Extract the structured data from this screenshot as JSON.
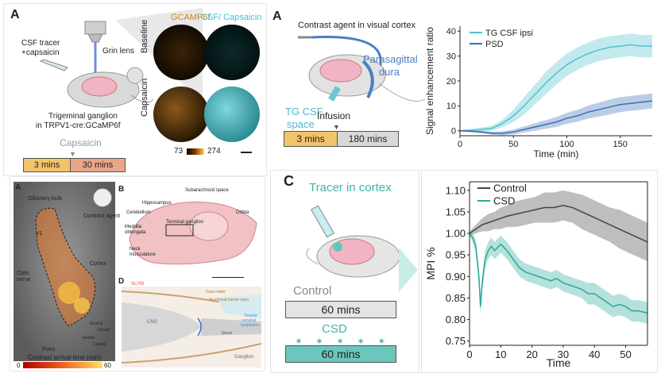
{
  "top_left": {
    "panel_letter": "A",
    "tracer_label_1": "CSF tracer",
    "tracer_label_2": "+capsaicin",
    "grin_label": "Grin lens",
    "ganglion_label_1": "Trigeminal ganglion",
    "ganglion_label_2": "in TRPV1-cre:GCaMP6f",
    "col_header_1": "GCAMP6f",
    "col_header_2": "CSF/ Capsaicin",
    "row_label_1": "Baseline",
    "row_label_2": "Capsaicin",
    "capsaicin_label": "Capsaicin",
    "time_box_1": "3 mins",
    "time_box_2": "30 mins",
    "scale_min": "73",
    "scale_max": "274",
    "colors": {
      "gcamp": "#d4831a",
      "csf": "#3fbfcf",
      "box1": "#f2c46a",
      "box2": "#e9a58a"
    }
  },
  "top_right": {
    "panel_letter": "A",
    "title_1": "Contrast agent in visual cortex",
    "dura_label_1": "Parasagittal",
    "dura_label_2": "dura",
    "tg_label_1": "TG CSF",
    "tg_label_2": "space",
    "infusion_label": "Infusion",
    "time_box_1": "3 mins",
    "time_box_2": "180 mins",
    "colors": {
      "dura": "#4a7fc1",
      "tg": "#4fb7c9",
      "box1": "#f2c46a",
      "box2": "#d8d8d8"
    }
  },
  "bottom_left": {
    "panel_a": "A",
    "panel_b": "B",
    "panel_d": "D",
    "olfactory": "Olfactory bulb",
    "contrast_agent": "Contrast agent",
    "v1": "V1",
    "cortex": "Cortex",
    "optic_1": "Optic",
    "optic_2": "nerve",
    "pons": "Pons",
    "orient_rostral": "Rostral",
    "orient_dorsal": "Dorsal",
    "orient_ventral": "Ventral",
    "orient_caudal": "Caudal",
    "scale_title": "Contrast arrival time (min)",
    "scale_min": "0",
    "scale_max": "60",
    "subarachnoid": "Subarachnoid space",
    "hippocampus": "Hippocampus",
    "cerebellum": "Cerebellum",
    "orbita": "Orbita",
    "terminal_ganglion": "Terminal ganglion",
    "medulla_1": "Medulla",
    "medulla_2": "oblongata",
    "neck_1": "Neck",
    "neck_2": "musculature",
    "slym": "SLYM",
    "dura_mater": "Dura mater",
    "arachnoid": "Arachnoid barrier layer",
    "cns": "CNS",
    "toward_1": "Toward",
    "toward_2": "cervical",
    "toward_3": "lymphatics",
    "ganglion": "Ganglion",
    "nerve_label": "Nerve"
  },
  "bottom_right": {
    "panel_letter": "C",
    "tracer_label": "Tracer in cortex",
    "control_label": "Control",
    "control_box": "60 mins",
    "csd_label": "CSD",
    "csd_box": "60 mins",
    "colors": {
      "teal": "#3fb5a3",
      "box": "#6cc6bc",
      "control_box": "#e4e4e4"
    }
  },
  "chart_data": [
    {
      "type": "line",
      "xlabel": "Time (min)",
      "ylabel": "Signal enhancement ratio",
      "xlim": [
        0,
        180
      ],
      "ylim": [
        -2,
        42
      ],
      "xticks": [
        0,
        50,
        100,
        150
      ],
      "yticks": [
        0,
        10,
        20,
        30,
        40
      ],
      "legend_position": "top-left",
      "series": [
        {
          "name": "TG CSF ipsi",
          "color": "#4fc0cf",
          "x": [
            0,
            10,
            20,
            30,
            40,
            50,
            60,
            70,
            80,
            90,
            100,
            110,
            120,
            130,
            140,
            150,
            160,
            170,
            180
          ],
          "y": [
            0,
            0.2,
            0.5,
            1,
            3,
            6,
            10,
            14.5,
            19,
            23,
            26.5,
            29,
            31,
            32.5,
            33.5,
            34,
            34.5,
            34,
            34
          ],
          "band": [
            0.3,
            0.5,
            0.8,
            1,
            1.5,
            2.5,
            3.5,
            4,
            4.5,
            4.5,
            4.5,
            4.5,
            4.5,
            4.5,
            4.5,
            4.5,
            4.5,
            4.5,
            4.5
          ]
        },
        {
          "name": "PSD",
          "color": "#3b6fb6",
          "x": [
            0,
            10,
            20,
            30,
            40,
            50,
            60,
            70,
            80,
            90,
            100,
            110,
            120,
            130,
            140,
            150,
            160,
            170,
            180
          ],
          "y": [
            0,
            -0.2,
            -0.5,
            -1,
            -1,
            -0.5,
            0.5,
            1.5,
            2.5,
            3.5,
            5,
            6,
            7.5,
            8.5,
            9.5,
            10.5,
            11,
            11.5,
            12
          ],
          "band": [
            0.3,
            0.4,
            0.5,
            0.6,
            0.8,
            1,
            1.2,
            1.5,
            1.7,
            2,
            2.2,
            2.4,
            2.6,
            2.8,
            3,
            3,
            3,
            3,
            3
          ]
        }
      ]
    },
    {
      "type": "line",
      "xlabel": "Time",
      "ylabel": "MPI %",
      "xlim": [
        0,
        57
      ],
      "ylim": [
        0.74,
        1.12
      ],
      "xticks": [
        0,
        10,
        20,
        30,
        40,
        50
      ],
      "yticks": [
        0.75,
        0.8,
        0.85,
        0.9,
        0.95,
        1.0,
        1.05,
        1.1
      ],
      "ytick_labels": [
        "0.75",
        "0.80",
        "0.85",
        "0.90",
        "0.95",
        "1.00",
        "1.05",
        "1.10"
      ],
      "legend_position": "top-left",
      "series": [
        {
          "name": "Control",
          "color": "#444444",
          "x": [
            0,
            2,
            4,
            6,
            8,
            10,
            12,
            15,
            18,
            21,
            24,
            27,
            30,
            33,
            36,
            39,
            42,
            45,
            48,
            51,
            54,
            57
          ],
          "y": [
            1.0,
            1.01,
            1.02,
            1.025,
            1.03,
            1.035,
            1.04,
            1.045,
            1.05,
            1.055,
            1.06,
            1.06,
            1.065,
            1.06,
            1.05,
            1.04,
            1.03,
            1.02,
            1.01,
            1.0,
            0.99,
            0.98
          ],
          "band": [
            0.005,
            0.01,
            0.015,
            0.02,
            0.02,
            0.025,
            0.025,
            0.03,
            0.03,
            0.03,
            0.035,
            0.035,
            0.035,
            0.035,
            0.04,
            0.04,
            0.04,
            0.04,
            0.045,
            0.045,
            0.045,
            0.045
          ]
        },
        {
          "name": "CSD",
          "color": "#2ba898",
          "x": [
            0,
            1,
            2,
            3,
            3.5,
            4,
            5,
            6,
            7,
            8,
            10,
            12,
            14,
            16,
            18,
            20,
            22,
            24,
            26,
            28,
            30,
            32,
            34,
            36,
            38,
            40,
            42,
            44,
            46,
            48,
            50,
            52,
            54,
            57
          ],
          "y": [
            1.0,
            0.99,
            0.97,
            0.9,
            0.83,
            0.88,
            0.94,
            0.96,
            0.97,
            0.96,
            0.975,
            0.96,
            0.94,
            0.92,
            0.91,
            0.905,
            0.9,
            0.895,
            0.89,
            0.895,
            0.885,
            0.88,
            0.875,
            0.87,
            0.86,
            0.86,
            0.85,
            0.84,
            0.83,
            0.835,
            0.83,
            0.82,
            0.82,
            0.815
          ],
          "band": [
            0.005,
            0.01,
            0.015,
            0.02,
            0.02,
            0.02,
            0.02,
            0.02,
            0.02,
            0.02,
            0.02,
            0.02,
            0.02,
            0.02,
            0.02,
            0.02,
            0.02,
            0.02,
            0.02,
            0.02,
            0.02,
            0.02,
            0.02,
            0.02,
            0.025,
            0.025,
            0.025,
            0.025,
            0.025,
            0.025,
            0.025,
            0.025,
            0.025,
            0.025
          ]
        }
      ]
    }
  ]
}
